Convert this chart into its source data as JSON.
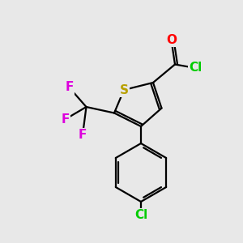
{
  "background_color": "#e8e8e8",
  "atom_colors": {
    "S": "#b8a000",
    "O": "#ff0000",
    "Cl": "#00cc00",
    "F": "#dd00dd",
    "C": "#000000"
  },
  "bond_color": "#000000",
  "bond_lw": 1.6
}
